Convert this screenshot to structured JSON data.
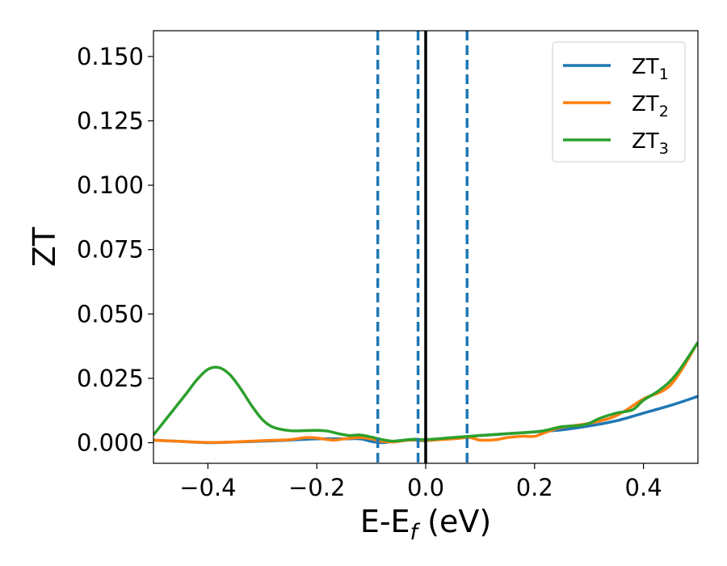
{
  "chart_data": {
    "type": "line",
    "xlabel": "E-E",
    "xlabel_sub": "f",
    "xlabel_unit": " (eV)",
    "ylabel": "ZT",
    "xlim": [
      -0.5,
      0.5
    ],
    "ylim": [
      -0.008,
      0.16
    ],
    "xticks": [
      -0.4,
      -0.2,
      0.0,
      0.2,
      0.4
    ],
    "xtick_labels": [
      "−0.4",
      "−0.2",
      "0.0",
      "0.2",
      "0.4"
    ],
    "yticks": [
      0.0,
      0.025,
      0.05,
      0.075,
      0.1,
      0.125,
      0.15
    ],
    "ytick_labels": [
      "0.000",
      "0.025",
      "0.050",
      "0.075",
      "0.100",
      "0.125",
      "0.150"
    ],
    "grid": false,
    "legend_position": "top-right",
    "vlines": [
      {
        "x": 0.0,
        "style": "solid",
        "color": "#000000"
      },
      {
        "x": -0.088,
        "style": "dashed",
        "color": "#1f77b4"
      },
      {
        "x": -0.014,
        "style": "dashed",
        "color": "#1f77b4"
      },
      {
        "x": 0.076,
        "style": "dashed",
        "color": "#1f77b4"
      }
    ],
    "series": [
      {
        "name": "ZT",
        "subscript": "1",
        "color": "#1f77b4",
        "x": [
          -0.5,
          -0.45,
          -0.4,
          -0.35,
          -0.3,
          -0.25,
          -0.2,
          -0.15,
          -0.12,
          -0.1,
          -0.08,
          -0.06,
          -0.04,
          -0.02,
          0.0,
          0.05,
          0.1,
          0.15,
          0.2,
          0.25,
          0.3,
          0.35,
          0.4,
          0.45,
          0.5
        ],
        "y": [
          0.001,
          0.0005,
          0.0,
          0.0003,
          0.0006,
          0.001,
          0.0015,
          0.0015,
          0.0015,
          0.0005,
          0.0,
          0.0005,
          0.001,
          0.001,
          0.0008,
          0.0018,
          0.0028,
          0.0035,
          0.0042,
          0.005,
          0.0065,
          0.0085,
          0.0115,
          0.0145,
          0.018
        ]
      },
      {
        "name": "ZT",
        "subscript": "2",
        "color": "#ff7f0e",
        "x": [
          -0.5,
          -0.45,
          -0.4,
          -0.35,
          -0.3,
          -0.25,
          -0.22,
          -0.2,
          -0.17,
          -0.15,
          -0.12,
          -0.1,
          -0.08,
          -0.06,
          -0.04,
          -0.02,
          0.0,
          0.05,
          0.08,
          0.1,
          0.13,
          0.15,
          0.18,
          0.2,
          0.22,
          0.25,
          0.3,
          0.35,
          0.4,
          0.45,
          0.5
        ],
        "y": [
          0.001,
          0.0005,
          0.0001,
          0.0003,
          0.0008,
          0.0012,
          0.002,
          0.0018,
          0.001,
          0.0015,
          0.002,
          0.0015,
          0.0005,
          0.0003,
          0.0008,
          0.0012,
          0.0009,
          0.0015,
          0.002,
          0.001,
          0.0012,
          0.002,
          0.0025,
          0.0025,
          0.004,
          0.006,
          0.0075,
          0.0105,
          0.017,
          0.0225,
          0.039
        ]
      },
      {
        "name": "ZT",
        "subscript": "3",
        "color": "#2ca02c",
        "x": [
          -0.5,
          -0.47,
          -0.44,
          -0.42,
          -0.4,
          -0.38,
          -0.36,
          -0.34,
          -0.32,
          -0.3,
          -0.28,
          -0.25,
          -0.22,
          -0.2,
          -0.18,
          -0.16,
          -0.14,
          -0.12,
          -0.1,
          -0.08,
          -0.06,
          -0.04,
          -0.02,
          0.0,
          0.05,
          0.1,
          0.15,
          0.2,
          0.22,
          0.25,
          0.28,
          0.3,
          0.32,
          0.35,
          0.38,
          0.4,
          0.43,
          0.46,
          0.5
        ],
        "y": [
          0.003,
          0.011,
          0.019,
          0.0245,
          0.0285,
          0.0292,
          0.0265,
          0.021,
          0.0145,
          0.009,
          0.006,
          0.0047,
          0.0047,
          0.0048,
          0.0045,
          0.0035,
          0.0028,
          0.003,
          0.0022,
          0.0012,
          0.0006,
          0.001,
          0.0014,
          0.0012,
          0.002,
          0.0028,
          0.0035,
          0.0042,
          0.0048,
          0.0062,
          0.0066,
          0.0075,
          0.0095,
          0.0115,
          0.0128,
          0.0165,
          0.0205,
          0.0265,
          0.039
        ]
      }
    ]
  }
}
